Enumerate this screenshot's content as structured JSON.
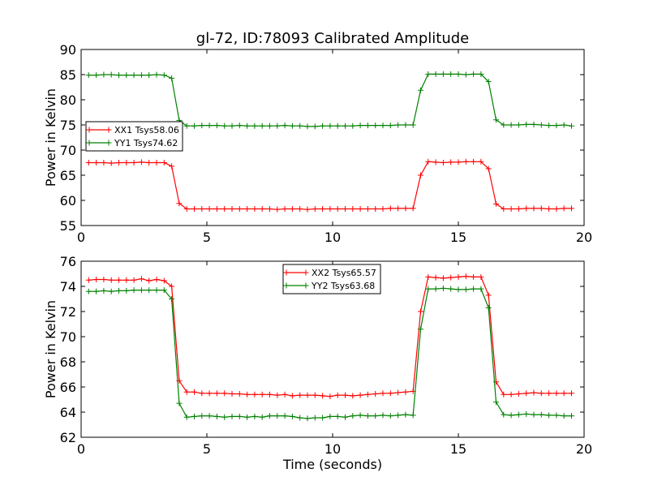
{
  "figure_title": "gl-72, ID:78093 Calibrated Amplitude",
  "colors": {
    "xx": "#ff0000",
    "yy": "#008000"
  },
  "chart_data": [
    {
      "type": "line",
      "title": "gl-72, ID:78093 Calibrated Amplitude",
      "xlabel": "",
      "ylabel": "Power in Kelvin",
      "xlim": [
        0,
        20
      ],
      "ylim": [
        55,
        90
      ],
      "xticks": [
        0,
        5,
        10,
        15,
        20
      ],
      "yticks": [
        55,
        60,
        65,
        70,
        75,
        80,
        85,
        90
      ],
      "grid": false,
      "legend_position": "center-left",
      "x": [
        0.3,
        0.6,
        0.9,
        1.2,
        1.5,
        1.8,
        2.1,
        2.4,
        2.7,
        3.0,
        3.3,
        3.6,
        3.9,
        4.2,
        4.5,
        4.8,
        5.1,
        5.4,
        5.7,
        6.0,
        6.3,
        6.6,
        6.9,
        7.2,
        7.5,
        7.8,
        8.1,
        8.4,
        8.7,
        9.0,
        9.3,
        9.6,
        9.9,
        10.2,
        10.5,
        10.8,
        11.1,
        11.4,
        11.7,
        12.0,
        12.3,
        12.6,
        12.9,
        13.2,
        13.5,
        13.8,
        14.1,
        14.4,
        14.7,
        15.0,
        15.3,
        15.6,
        15.9,
        16.2,
        16.5,
        16.8,
        17.1,
        17.4,
        17.7,
        18.0,
        18.3,
        18.6,
        18.9,
        19.2,
        19.5
      ],
      "series": [
        {
          "name": "XX1 Tsys58.06",
          "color": "#ff0000",
          "values": [
            67.5,
            67.5,
            67.5,
            67.4,
            67.5,
            67.5,
            67.5,
            67.6,
            67.5,
            67.5,
            67.5,
            66.8,
            59.4,
            58.3,
            58.3,
            58.3,
            58.3,
            58.3,
            58.3,
            58.3,
            58.3,
            58.3,
            58.3,
            58.3,
            58.3,
            58.2,
            58.3,
            58.3,
            58.3,
            58.2,
            58.3,
            58.3,
            58.3,
            58.3,
            58.3,
            58.3,
            58.3,
            58.3,
            58.3,
            58.3,
            58.4,
            58.4,
            58.4,
            58.4,
            65.0,
            67.7,
            67.6,
            67.5,
            67.6,
            67.6,
            67.7,
            67.7,
            67.7,
            66.3,
            59.3,
            58.3,
            58.3,
            58.3,
            58.4,
            58.4,
            58.4,
            58.3,
            58.3,
            58.4,
            58.4
          ]
        },
        {
          "name": "YY1 Tsys74.62",
          "color": "#008000",
          "values": [
            84.9,
            84.9,
            85.0,
            85.0,
            84.9,
            84.9,
            84.9,
            84.9,
            84.9,
            85.0,
            84.9,
            84.3,
            75.9,
            74.8,
            74.8,
            74.9,
            74.9,
            74.9,
            74.8,
            74.8,
            74.9,
            74.8,
            74.8,
            74.8,
            74.8,
            74.8,
            74.9,
            74.8,
            74.8,
            74.7,
            74.7,
            74.8,
            74.8,
            74.8,
            74.8,
            74.8,
            74.9,
            74.9,
            74.9,
            74.9,
            74.9,
            75.0,
            75.0,
            75.0,
            81.9,
            85.1,
            85.1,
            85.1,
            85.1,
            85.1,
            85.0,
            85.1,
            85.1,
            83.6,
            76.0,
            75.0,
            75.0,
            75.0,
            75.1,
            75.1,
            75.0,
            74.9,
            74.9,
            75.0,
            74.8
          ]
        }
      ]
    },
    {
      "type": "line",
      "title": "",
      "xlabel": "Time (seconds)",
      "ylabel": "Power in Kelvin",
      "xlim": [
        0,
        20
      ],
      "ylim": [
        62,
        76
      ],
      "xticks": [
        0,
        5,
        10,
        15,
        20
      ],
      "yticks": [
        62,
        64,
        66,
        68,
        70,
        72,
        74,
        76
      ],
      "grid": false,
      "legend_position": "top-center",
      "x": [
        0.3,
        0.6,
        0.9,
        1.2,
        1.5,
        1.8,
        2.1,
        2.4,
        2.7,
        3.0,
        3.3,
        3.6,
        3.9,
        4.2,
        4.5,
        4.8,
        5.1,
        5.4,
        5.7,
        6.0,
        6.3,
        6.6,
        6.9,
        7.2,
        7.5,
        7.8,
        8.1,
        8.4,
        8.7,
        9.0,
        9.3,
        9.6,
        9.9,
        10.2,
        10.5,
        10.8,
        11.1,
        11.4,
        11.7,
        12.0,
        12.3,
        12.6,
        12.9,
        13.2,
        13.5,
        13.8,
        14.1,
        14.4,
        14.7,
        15.0,
        15.3,
        15.6,
        15.9,
        16.2,
        16.5,
        16.8,
        17.1,
        17.4,
        17.7,
        18.0,
        18.3,
        18.6,
        18.9,
        19.2,
        19.5
      ],
      "series": [
        {
          "name": "XX2 Tsys65.57",
          "color": "#ff0000",
          "values": [
            74.5,
            74.55,
            74.55,
            74.5,
            74.5,
            74.5,
            74.5,
            74.6,
            74.45,
            74.55,
            74.45,
            74.0,
            66.5,
            65.6,
            65.6,
            65.5,
            65.5,
            65.5,
            65.5,
            65.45,
            65.45,
            65.4,
            65.4,
            65.4,
            65.4,
            65.35,
            65.4,
            65.3,
            65.35,
            65.35,
            65.35,
            65.3,
            65.25,
            65.35,
            65.35,
            65.3,
            65.35,
            65.4,
            65.45,
            65.5,
            65.5,
            65.55,
            65.6,
            65.65,
            72.0,
            74.75,
            74.7,
            74.65,
            74.7,
            74.75,
            74.8,
            74.75,
            74.75,
            73.3,
            66.4,
            65.4,
            65.4,
            65.45,
            65.5,
            65.55,
            65.5,
            65.5,
            65.5,
            65.5,
            65.5
          ]
        },
        {
          "name": "YY2 Tsys63.68",
          "color": "#008000",
          "values": [
            73.6,
            73.6,
            73.65,
            73.6,
            73.65,
            73.65,
            73.7,
            73.7,
            73.7,
            73.7,
            73.7,
            73.0,
            64.7,
            63.6,
            63.65,
            63.7,
            63.7,
            63.65,
            63.6,
            63.65,
            63.65,
            63.6,
            63.65,
            63.6,
            63.7,
            63.7,
            63.7,
            63.65,
            63.55,
            63.5,
            63.55,
            63.55,
            63.65,
            63.65,
            63.6,
            63.7,
            63.75,
            63.7,
            63.7,
            63.75,
            63.7,
            63.75,
            63.8,
            63.75,
            70.6,
            73.8,
            73.8,
            73.85,
            73.8,
            73.75,
            73.75,
            73.8,
            73.8,
            72.3,
            64.8,
            63.8,
            63.75,
            63.8,
            63.85,
            63.8,
            63.8,
            63.75,
            63.75,
            63.7,
            63.7
          ]
        }
      ]
    }
  ]
}
